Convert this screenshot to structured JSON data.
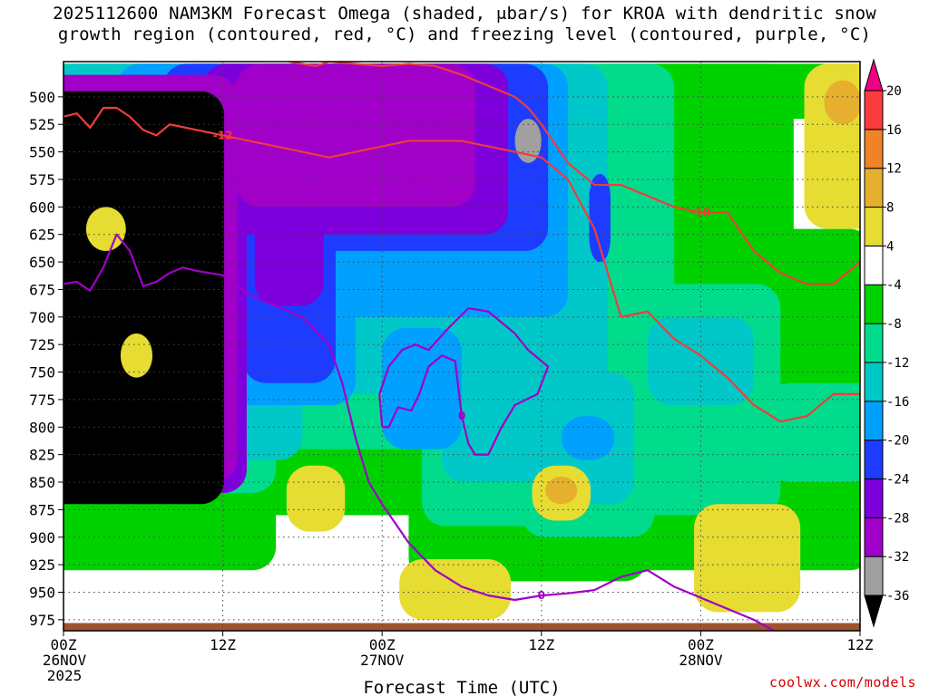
{
  "title": {
    "line1": "2025112600 NAM3KM Forecast Omega (shaded, μbar/s) for KROA with dendritic snow",
    "line2": "growth region (contoured, red, °C) and freezing level (contoured, purple, °C)"
  },
  "credit": "coolwx.com/models",
  "chart_data": {
    "type": "heatmap",
    "title": "2025112600 NAM3KM Forecast Omega (shaded, μbar/s) for KROA with dendritic snow growth region (contoured, red, °C) and freezing level (contoured, purple, °C)",
    "xlabel": "Forecast Time (UTC)",
    "ylabel": "",
    "x_unit": "hours from 2025-11-26 00Z",
    "xlim": [
      0,
      60
    ],
    "ylim": [
      985,
      468
    ],
    "grid": true,
    "x_ticks": [
      {
        "h": 0,
        "lines": [
          "00Z",
          "26NOV",
          "2025"
        ]
      },
      {
        "h": 12,
        "lines": [
          "12Z"
        ]
      },
      {
        "h": 24,
        "lines": [
          "00Z",
          "27NOV"
        ]
      },
      {
        "h": 36,
        "lines": [
          "12Z"
        ]
      },
      {
        "h": 48,
        "lines": [
          "00Z",
          "28NOV"
        ]
      },
      {
        "h": 60,
        "lines": [
          "12Z"
        ]
      }
    ],
    "y_ticks": [
      500,
      525,
      550,
      575,
      600,
      625,
      650,
      675,
      700,
      725,
      750,
      775,
      800,
      825,
      850,
      875,
      900,
      925,
      950,
      975
    ],
    "colorbar": {
      "levels": [
        -36,
        -32,
        -28,
        -24,
        -20,
        -16,
        -12,
        -8,
        -4,
        4,
        8,
        12,
        16,
        20
      ],
      "colors": [
        "#000000",
        "#a0a0a0",
        "#a000c8",
        "#7d00dc",
        "#1e3cff",
        "#00a0ff",
        "#00c8c8",
        "#00dc8c",
        "#00d200",
        "#ffffff",
        "#e6dc32",
        "#e6af2d",
        "#f08228",
        "#fa3c3c",
        "#f00082"
      ]
    },
    "omega_field": [
      {
        "bin": "lt-36",
        "blobs": [
          [
            4.3,
            7.8,
            495,
            870
          ]
        ]
      },
      {
        "bin": "-36..-32",
        "blobs": [
          [
            3.2,
            1.2,
            555,
            580
          ],
          [
            35,
            1.0,
            520,
            560
          ]
        ]
      },
      {
        "bin": "-32..-28",
        "blobs": [
          [
            22,
            9,
            470,
            600
          ],
          [
            15,
            2.5,
            480,
            580
          ],
          [
            4.3,
            8.8,
            480,
            850
          ]
        ]
      },
      {
        "bin": "-28..-24",
        "blobs": [
          [
            22,
            11.5,
            470,
            625
          ],
          [
            17,
            2.6,
            480,
            690
          ],
          [
            4.3,
            9.5,
            480,
            860
          ]
        ]
      },
      {
        "bin": "-24..-20",
        "blobs": [
          [
            22,
            14.5,
            470,
            640
          ],
          [
            17,
            3.5,
            470,
            760
          ],
          [
            5,
            4.2,
            500,
            800
          ],
          [
            40.4,
            0.8,
            570,
            650
          ]
        ]
      },
      {
        "bin": "-20..-16",
        "blobs": [
          [
            21,
            17,
            470,
            700
          ],
          [
            15,
            7,
            470,
            780
          ],
          [
            5,
            6,
            490,
            850
          ],
          [
            39.5,
            2,
            790,
            830
          ],
          [
            27,
            3,
            710,
            820
          ]
        ]
      },
      {
        "bin": "-16..-12",
        "blobs": [
          [
            20,
            21,
            470,
            770
          ],
          [
            9,
            9,
            540,
            830
          ],
          [
            39.5,
            3.5,
            750,
            870
          ],
          [
            33.5,
            5,
            740,
            850
          ],
          [
            48,
            4,
            700,
            780
          ]
        ]
      },
      {
        "bin": "-12..-8",
        "blobs": [
          [
            21,
            25,
            470,
            820
          ],
          [
            6,
            10,
            560,
            860
          ],
          [
            39.5,
            5,
            740,
            900
          ],
          [
            33,
            6,
            690,
            890
          ],
          [
            48,
            6,
            670,
            880
          ],
          [
            58,
            5,
            760,
            850
          ],
          [
            53,
            2.5,
            760,
            840
          ]
        ]
      },
      {
        "bin": "-8..-4",
        "blobs": [
          [
            22,
            33,
            470,
            880
          ],
          [
            5,
            11,
            510,
            930
          ],
          [
            35,
            9,
            640,
            940
          ],
          [
            49,
            12,
            620,
            930
          ],
          [
            57,
            6,
            640,
            920
          ],
          [
            51,
            12,
            470,
            520
          ]
        ]
      },
      {
        "bin": "4..8",
        "blobs": [
          [
            59,
            3.2,
            470,
            620
          ],
          [
            29.5,
            4.2,
            920,
            975
          ],
          [
            19,
            2.2,
            835,
            895
          ],
          [
            37.5,
            2.2,
            835,
            885
          ],
          [
            51.5,
            4,
            870,
            968
          ],
          [
            3.2,
            1.5,
            600,
            640
          ],
          [
            5.5,
            1.2,
            715,
            755
          ]
        ]
      },
      {
        "bin": "8..12",
        "blobs": [
          [
            58.7,
            1.4,
            485,
            525
          ],
          [
            37.5,
            1.2,
            845,
            870
          ]
        ]
      }
    ],
    "series": [
      {
        "name": "freezing level (contoured, purple, °C)",
        "label": "0",
        "color": "#a000c8",
        "x": [
          0,
          1,
          2,
          3,
          4,
          5,
          6,
          7,
          8,
          9,
          10,
          12,
          14,
          16,
          18,
          20,
          21,
          22,
          23,
          24,
          26,
          28,
          30,
          32,
          34,
          36,
          38,
          40,
          42,
          44,
          46,
          48,
          50,
          52,
          53.5
        ],
        "y": [
          670,
          668,
          676,
          655,
          625,
          640,
          672,
          668,
          660,
          655,
          658,
          662,
          680,
          690,
          700,
          725,
          760,
          810,
          850,
          870,
          905,
          930,
          945,
          953,
          957,
          953,
          951,
          948,
          936,
          930,
          945,
          955,
          965,
          975,
          985
        ]
      },
      {
        "name": "freezing level (contoured, purple, °C)",
        "label": "0",
        "color": "#a000c8",
        "x": [
          24,
          23.8,
          24.5,
          25.5,
          26.5,
          27.5,
          29,
          30.5,
          32,
          33,
          34,
          35,
          36,
          36.5,
          35.7,
          34,
          33,
          32,
          31,
          30.5,
          30,
          29.5,
          28.5,
          27.5,
          26.8,
          26.2,
          25.2,
          24.5,
          24
        ],
        "y": [
          800,
          770,
          745,
          730,
          725,
          730,
          710,
          692,
          695,
          705,
          715,
          730,
          740,
          745,
          770,
          780,
          800,
          825,
          825,
          815,
          790,
          740,
          735,
          745,
          770,
          785,
          782,
          800,
          800
        ]
      },
      {
        "name": "dendritic snow growth region (contoured, red, °C)",
        "label": "-12",
        "color": "#f03c3c",
        "x": [
          0,
          1,
          2,
          3,
          4,
          5,
          6,
          7,
          8,
          10,
          12,
          14,
          16,
          18,
          20,
          22,
          24,
          26,
          28,
          30,
          32,
          34,
          36,
          38,
          40,
          41,
          42,
          44,
          46,
          48,
          50,
          52,
          54,
          56,
          58,
          60
        ],
        "y": [
          518,
          515,
          528,
          510,
          510,
          518,
          530,
          535,
          525,
          530,
          535,
          540,
          545,
          550,
          555,
          550,
          545,
          540,
          540,
          540,
          545,
          550,
          555,
          575,
          620,
          660,
          700,
          695,
          720,
          735,
          755,
          780,
          795,
          790,
          770,
          770
        ]
      },
      {
        "name": "dendritic snow growth region (contoured, red, °C)",
        "label": "-18",
        "color": "#f03c3c",
        "x": [
          17,
          18,
          19,
          20,
          22,
          24,
          26,
          28,
          30,
          32,
          34,
          35,
          36,
          38,
          40,
          42,
          44,
          46,
          48,
          50,
          52,
          54,
          56,
          58,
          60
        ],
        "y": [
          468,
          470,
          472,
          468,
          470,
          472,
          470,
          472,
          480,
          490,
          500,
          510,
          525,
          560,
          580,
          580,
          590,
          600,
          605,
          605,
          640,
          660,
          670,
          670,
          650
        ]
      }
    ]
  }
}
